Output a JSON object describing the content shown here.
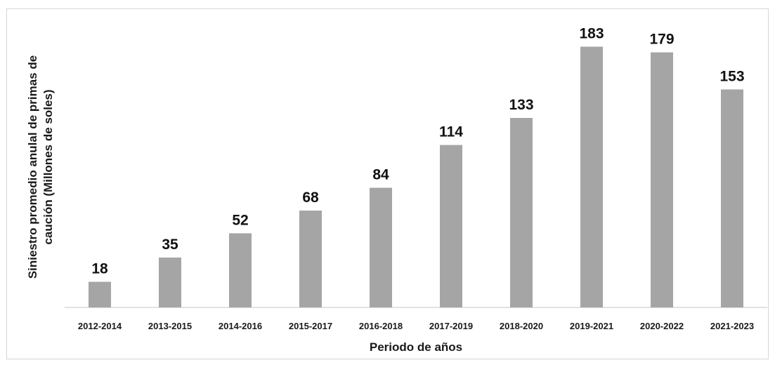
{
  "chart_data": {
    "type": "bar",
    "title": "",
    "categories": [
      "2012-2014",
      "2013-2015",
      "2014-2016",
      "2015-2017",
      "2016-2018",
      "2017-2019",
      "2018-2020",
      "2019-2021",
      "2020-2022",
      "2021-2023"
    ],
    "values": [
      18,
      35,
      52,
      68,
      84,
      114,
      133,
      183,
      179,
      153
    ],
    "xlabel": "Periodo de años",
    "ylabel_lines": [
      "Siniestro promedio anulal de primas de",
      "caución (Millones de soles)"
    ],
    "ylim": [
      0,
      190
    ],
    "grid": false,
    "legend": "none",
    "data_labels": true,
    "colors": {
      "bar": "#a5a5a5",
      "axis": "#d9d9d9",
      "text": "#1a1a1a"
    }
  }
}
